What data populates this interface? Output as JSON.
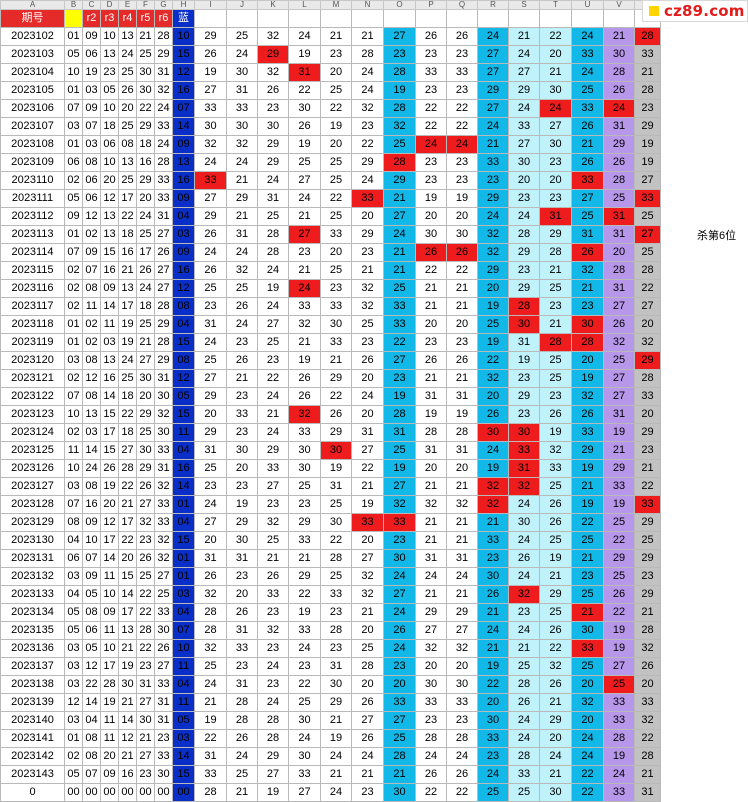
{
  "watermark": "cz89.com",
  "annotation": {
    "text": "杀第6位",
    "row": 11
  },
  "col_letters": [
    "A",
    "B",
    "C",
    "D",
    "E",
    "F",
    "G",
    "H",
    "I",
    "J",
    "K",
    "L",
    "M",
    "N",
    "O",
    "P",
    "Q",
    "R",
    "S",
    "T",
    "U",
    "V",
    "W"
  ],
  "headers": [
    "期号",
    "",
    "r2",
    "r3",
    "r4",
    "r5",
    "r6",
    "蓝",
    "",
    "",
    "",
    "",
    "",
    "",
    "",
    "",
    "",
    "",
    "",
    "",
    "",
    "",
    ""
  ],
  "colors": {
    "red": "#e52a2a",
    "blue": "#0a2fc8",
    "cyan": "#12b9e8",
    "light_cyan": "#bff2fb",
    "purple": "#b797ea",
    "gray": "#c2c2c2",
    "highlight": "#ee1c1c",
    "yellow": "#ffff00"
  },
  "rows": [
    {
      "p": "2023102",
      "n": [
        "01",
        "09",
        "10",
        "13",
        "21",
        "28"
      ],
      "b": "10",
      "v": [
        29,
        25,
        32,
        24,
        21,
        21,
        27,
        26,
        26,
        24,
        21,
        22,
        24,
        21,
        28
      ]
    },
    {
      "p": "2023103",
      "n": [
        "05",
        "06",
        "13",
        "24",
        "25",
        "29"
      ],
      "b": "15",
      "v": [
        26,
        24,
        29,
        19,
        23,
        28,
        23,
        23,
        23,
        27,
        24,
        20,
        33,
        30,
        33
      ]
    },
    {
      "p": "2023104",
      "n": [
        "10",
        "19",
        "23",
        "25",
        "30",
        "31"
      ],
      "b": "12",
      "v": [
        19,
        30,
        32,
        31,
        20,
        24,
        28,
        33,
        33,
        27,
        27,
        21,
        24,
        28,
        21
      ]
    },
    {
      "p": "2023105",
      "n": [
        "01",
        "03",
        "05",
        "26",
        "30",
        "32"
      ],
      "b": "16",
      "v": [
        27,
        31,
        26,
        22,
        25,
        24,
        19,
        23,
        23,
        29,
        29,
        30,
        25,
        26,
        28
      ]
    },
    {
      "p": "2023106",
      "n": [
        "07",
        "09",
        "10",
        "20",
        "22",
        "24"
      ],
      "b": "07",
      "v": [
        33,
        33,
        23,
        30,
        22,
        32,
        28,
        22,
        22,
        27,
        24,
        24,
        33,
        24,
        23
      ]
    },
    {
      "p": "2023107",
      "n": [
        "03",
        "07",
        "18",
        "25",
        "29",
        "33"
      ],
      "b": "14",
      "v": [
        30,
        30,
        30,
        26,
        19,
        23,
        32,
        22,
        22,
        24,
        33,
        27,
        26,
        31,
        29
      ]
    },
    {
      "p": "2023108",
      "n": [
        "01",
        "03",
        "06",
        "08",
        "18",
        "24"
      ],
      "b": "09",
      "v": [
        32,
        32,
        29,
        19,
        20,
        22,
        25,
        24,
        24,
        21,
        27,
        30,
        21,
        29,
        19
      ]
    },
    {
      "p": "2023109",
      "n": [
        "06",
        "08",
        "10",
        "13",
        "16",
        "28"
      ],
      "b": "13",
      "v": [
        24,
        24,
        29,
        25,
        25,
        29,
        28,
        23,
        23,
        33,
        30,
        23,
        26,
        26,
        19
      ]
    },
    {
      "p": "2023110",
      "n": [
        "02",
        "06",
        "20",
        "25",
        "29",
        "33"
      ],
      "b": "16",
      "v": [
        33,
        21,
        24,
        27,
        25,
        24,
        29,
        23,
        23,
        23,
        20,
        20,
        33,
        28,
        27
      ]
    },
    {
      "p": "2023111",
      "n": [
        "05",
        "06",
        "12",
        "17",
        "20",
        "33"
      ],
      "b": "09",
      "v": [
        27,
        29,
        31,
        24,
        22,
        33,
        21,
        19,
        19,
        29,
        23,
        23,
        27,
        25,
        33
      ]
    },
    {
      "p": "2023112",
      "n": [
        "09",
        "12",
        "13",
        "22",
        "24",
        "31"
      ],
      "b": "04",
      "v": [
        29,
        21,
        25,
        21,
        25,
        20,
        27,
        20,
        20,
        24,
        24,
        31,
        25,
        31,
        25
      ]
    },
    {
      "p": "2023113",
      "n": [
        "01",
        "02",
        "13",
        "18",
        "25",
        "27"
      ],
      "b": "03",
      "v": [
        26,
        31,
        28,
        27,
        33,
        29,
        24,
        30,
        30,
        32,
        28,
        29,
        31,
        31,
        27
      ]
    },
    {
      "p": "2023114",
      "n": [
        "07",
        "09",
        "15",
        "16",
        "17",
        "26"
      ],
      "b": "09",
      "v": [
        24,
        24,
        28,
        23,
        20,
        23,
        21,
        26,
        26,
        32,
        29,
        28,
        26,
        20,
        25
      ]
    },
    {
      "p": "2023115",
      "n": [
        "02",
        "07",
        "16",
        "21",
        "26",
        "27"
      ],
      "b": "16",
      "v": [
        26,
        32,
        24,
        21,
        25,
        21,
        21,
        22,
        22,
        29,
        23,
        21,
        32,
        28,
        28
      ]
    },
    {
      "p": "2023116",
      "n": [
        "02",
        "08",
        "09",
        "13",
        "24",
        "27"
      ],
      "b": "12",
      "v": [
        25,
        25,
        19,
        24,
        23,
        32,
        25,
        21,
        21,
        20,
        29,
        25,
        21,
        31,
        22
      ]
    },
    {
      "p": "2023117",
      "n": [
        "02",
        "11",
        "14",
        "17",
        "18",
        "28"
      ],
      "b": "08",
      "v": [
        23,
        26,
        24,
        33,
        33,
        32,
        33,
        21,
        21,
        19,
        28,
        23,
        23,
        27,
        27
      ]
    },
    {
      "p": "2023118",
      "n": [
        "01",
        "02",
        "11",
        "19",
        "25",
        "29"
      ],
      "b": "04",
      "v": [
        31,
        24,
        27,
        32,
        30,
        25,
        33,
        20,
        20,
        25,
        30,
        21,
        30,
        26,
        20
      ]
    },
    {
      "p": "2023119",
      "n": [
        "01",
        "02",
        "03",
        "19",
        "21",
        "28"
      ],
      "b": "15",
      "v": [
        24,
        23,
        25,
        21,
        33,
        23,
        22,
        23,
        23,
        19,
        31,
        28,
        28,
        32,
        32
      ]
    },
    {
      "p": "2023120",
      "n": [
        "03",
        "08",
        "13",
        "24",
        "27",
        "29"
      ],
      "b": "08",
      "v": [
        25,
        26,
        23,
        19,
        21,
        26,
        27,
        26,
        26,
        22,
        19,
        25,
        20,
        25,
        29
      ]
    },
    {
      "p": "2023121",
      "n": [
        "02",
        "12",
        "16",
        "25",
        "30",
        "31"
      ],
      "b": "12",
      "v": [
        27,
        21,
        22,
        26,
        29,
        20,
        23,
        21,
        21,
        32,
        23,
        25,
        19,
        27,
        28
      ]
    },
    {
      "p": "2023122",
      "n": [
        "07",
        "08",
        "14",
        "18",
        "20",
        "30"
      ],
      "b": "05",
      "v": [
        29,
        23,
        24,
        26,
        22,
        24,
        19,
        31,
        31,
        20,
        29,
        23,
        32,
        27,
        33
      ]
    },
    {
      "p": "2023123",
      "n": [
        "10",
        "13",
        "15",
        "22",
        "29",
        "32"
      ],
      "b": "15",
      "v": [
        20,
        33,
        21,
        32,
        26,
        20,
        28,
        19,
        19,
        26,
        23,
        26,
        26,
        31,
        20
      ]
    },
    {
      "p": "2023124",
      "n": [
        "02",
        "03",
        "17",
        "18",
        "25",
        "30"
      ],
      "b": "11",
      "v": [
        29,
        23,
        24,
        33,
        29,
        31,
        31,
        28,
        28,
        30,
        30,
        19,
        33,
        19,
        29
      ]
    },
    {
      "p": "2023125",
      "n": [
        "11",
        "14",
        "15",
        "27",
        "30",
        "33"
      ],
      "b": "04",
      "v": [
        31,
        30,
        29,
        30,
        30,
        27,
        25,
        31,
        31,
        24,
        33,
        32,
        29,
        21,
        23
      ]
    },
    {
      "p": "2023126",
      "n": [
        "10",
        "24",
        "26",
        "28",
        "29",
        "31"
      ],
      "b": "16",
      "v": [
        25,
        20,
        33,
        30,
        19,
        22,
        19,
        20,
        20,
        19,
        31,
        33,
        19,
        29,
        21
      ]
    },
    {
      "p": "2023127",
      "n": [
        "03",
        "08",
        "19",
        "22",
        "26",
        "32"
      ],
      "b": "14",
      "v": [
        23,
        23,
        27,
        25,
        31,
        21,
        27,
        21,
        21,
        32,
        32,
        25,
        21,
        33,
        22
      ]
    },
    {
      "p": "2023128",
      "n": [
        "07",
        "16",
        "20",
        "21",
        "27",
        "33"
      ],
      "b": "01",
      "v": [
        24,
        19,
        23,
        23,
        25,
        19,
        32,
        32,
        32,
        32,
        24,
        26,
        19,
        19,
        33
      ]
    },
    {
      "p": "2023129",
      "n": [
        "08",
        "09",
        "12",
        "17",
        "32",
        "33"
      ],
      "b": "04",
      "v": [
        27,
        29,
        32,
        29,
        30,
        33,
        33,
        21,
        21,
        21,
        30,
        26,
        22,
        25,
        29
      ]
    },
    {
      "p": "2023130",
      "n": [
        "04",
        "10",
        "17",
        "22",
        "23",
        "32"
      ],
      "b": "15",
      "v": [
        20,
        30,
        25,
        33,
        22,
        20,
        23,
        21,
        21,
        33,
        24,
        25,
        25,
        22,
        25
      ]
    },
    {
      "p": "2023131",
      "n": [
        "06",
        "07",
        "14",
        "20",
        "26",
        "32"
      ],
      "b": "01",
      "v": [
        31,
        31,
        21,
        21,
        28,
        27,
        30,
        31,
        31,
        23,
        26,
        19,
        21,
        29,
        29
      ]
    },
    {
      "p": "2023132",
      "n": [
        "03",
        "09",
        "11",
        "15",
        "25",
        "27"
      ],
      "b": "01",
      "v": [
        26,
        23,
        26,
        29,
        25,
        32,
        24,
        24,
        24,
        30,
        24,
        21,
        23,
        25,
        23
      ]
    },
    {
      "p": "2023133",
      "n": [
        "04",
        "05",
        "10",
        "14",
        "22",
        "25"
      ],
      "b": "03",
      "v": [
        32,
        20,
        33,
        22,
        33,
        32,
        27,
        21,
        21,
        26,
        32,
        29,
        25,
        26,
        29
      ]
    },
    {
      "p": "2023134",
      "n": [
        "05",
        "08",
        "09",
        "17",
        "22",
        "33"
      ],
      "b": "04",
      "v": [
        28,
        26,
        23,
        19,
        23,
        21,
        24,
        29,
        29,
        21,
        23,
        25,
        21,
        22,
        21
      ]
    },
    {
      "p": "2023135",
      "n": [
        "05",
        "06",
        "11",
        "13",
        "28",
        "30"
      ],
      "b": "07",
      "v": [
        28,
        31,
        32,
        33,
        28,
        20,
        26,
        27,
        27,
        24,
        24,
        26,
        30,
        19,
        28
      ]
    },
    {
      "p": "2023136",
      "n": [
        "03",
        "05",
        "10",
        "21",
        "22",
        "26"
      ],
      "b": "10",
      "v": [
        32,
        33,
        23,
        24,
        23,
        25,
        24,
        32,
        32,
        21,
        21,
        22,
        33,
        19,
        32
      ]
    },
    {
      "p": "2023137",
      "n": [
        "03",
        "12",
        "17",
        "19",
        "23",
        "27"
      ],
      "b": "11",
      "v": [
        25,
        23,
        24,
        23,
        31,
        28,
        23,
        20,
        20,
        19,
        25,
        32,
        25,
        27,
        26
      ]
    },
    {
      "p": "2023138",
      "n": [
        "03",
        "22",
        "28",
        "30",
        "31",
        "33"
      ],
      "b": "04",
      "v": [
        24,
        31,
        23,
        22,
        30,
        20,
        20,
        30,
        30,
        22,
        28,
        26,
        20,
        25,
        20
      ]
    },
    {
      "p": "2023139",
      "n": [
        "12",
        "14",
        "19",
        "21",
        "27",
        "31"
      ],
      "b": "11",
      "v": [
        21,
        28,
        24,
        25,
        29,
        26,
        33,
        33,
        33,
        20,
        26,
        21,
        32,
        33,
        33
      ]
    },
    {
      "p": "2023140",
      "n": [
        "03",
        "04",
        "11",
        "14",
        "30",
        "31"
      ],
      "b": "05",
      "v": [
        19,
        28,
        28,
        30,
        21,
        27,
        27,
        23,
        23,
        30,
        24,
        29,
        20,
        33,
        32
      ]
    },
    {
      "p": "2023141",
      "n": [
        "01",
        "08",
        "11",
        "12",
        "21",
        "23"
      ],
      "b": "03",
      "v": [
        22,
        26,
        28,
        24,
        19,
        26,
        25,
        28,
        28,
        33,
        24,
        20,
        24,
        28,
        22
      ]
    },
    {
      "p": "2023142",
      "n": [
        "02",
        "08",
        "20",
        "21",
        "27",
        "33"
      ],
      "b": "14",
      "v": [
        31,
        24,
        29,
        30,
        24,
        24,
        28,
        24,
        24,
        23,
        28,
        24,
        24,
        19,
        28
      ]
    },
    {
      "p": "2023143",
      "n": [
        "05",
        "07",
        "09",
        "16",
        "23",
        "30"
      ],
      "b": "15",
      "v": [
        33,
        25,
        27,
        33,
        21,
        21,
        21,
        26,
        26,
        24,
        33,
        21,
        22,
        24,
        21
      ]
    },
    {
      "p": "0",
      "n": [
        "00",
        "00",
        "00",
        "00",
        "00",
        "00"
      ],
      "b": "00",
      "v": [
        28,
        21,
        19,
        27,
        24,
        23,
        30,
        22,
        22,
        25,
        25,
        30,
        22,
        33,
        31
      ]
    }
  ],
  "highlights": [
    [
      0,
      14
    ],
    [
      1,
      2
    ],
    [
      2,
      3
    ],
    [
      4,
      11
    ],
    [
      4,
      13
    ],
    [
      6,
      7
    ],
    [
      6,
      8
    ],
    [
      7,
      6
    ],
    [
      8,
      0
    ],
    [
      8,
      12
    ],
    [
      9,
      5
    ],
    [
      9,
      14
    ],
    [
      10,
      11
    ],
    [
      10,
      13
    ],
    [
      11,
      3
    ],
    [
      11,
      14
    ],
    [
      12,
      7
    ],
    [
      12,
      8
    ],
    [
      12,
      12
    ],
    [
      14,
      3
    ],
    [
      15,
      10
    ],
    [
      16,
      10
    ],
    [
      16,
      12
    ],
    [
      17,
      11
    ],
    [
      17,
      12
    ],
    [
      18,
      14
    ],
    [
      21,
      3
    ],
    [
      22,
      9
    ],
    [
      22,
      10
    ],
    [
      23,
      4
    ],
    [
      23,
      10
    ],
    [
      24,
      10
    ],
    [
      25,
      9
    ],
    [
      25,
      10
    ],
    [
      26,
      9
    ],
    [
      26,
      14
    ],
    [
      27,
      5
    ],
    [
      27,
      6
    ],
    [
      31,
      10
    ],
    [
      32,
      12
    ],
    [
      34,
      12
    ],
    [
      36,
      13
    ]
  ]
}
